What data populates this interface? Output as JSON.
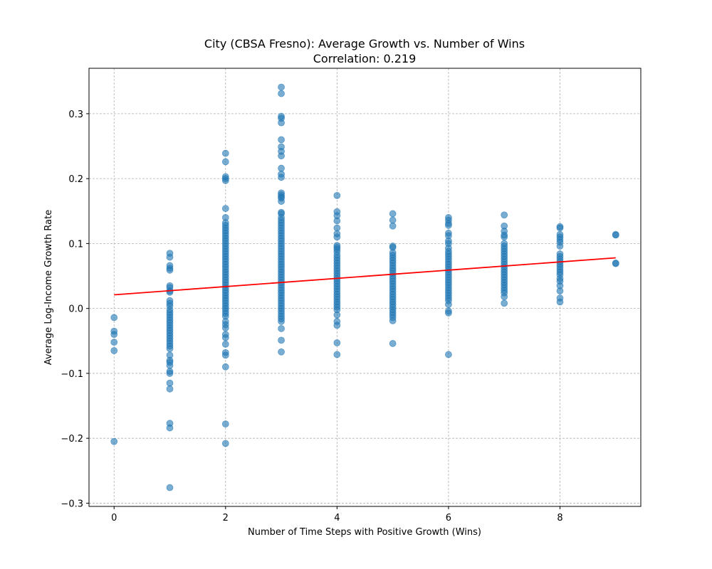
{
  "chart_data": {
    "type": "scatter",
    "title": "City (CBSA Fresno): Average Growth vs. Number of Wins",
    "subtitle": "Correlation: 0.219",
    "xlabel": "Number of Time Steps with Positive Growth (Wins)",
    "ylabel": "Average Log-Income Growth Rate",
    "xlim": [
      -0.45,
      9.45
    ],
    "ylim": [
      -0.305,
      0.37
    ],
    "x_ticks": [
      0,
      2,
      4,
      6,
      8
    ],
    "x_tick_labels": [
      "0",
      "2",
      "4",
      "6",
      "8"
    ],
    "y_ticks": [
      -0.3,
      -0.2,
      -0.1,
      0.0,
      0.1,
      0.2,
      0.3
    ],
    "y_tick_labels": [
      "−0.3",
      "−0.2",
      "−0.1",
      "0.0",
      "0.1",
      "0.2",
      "0.3"
    ],
    "grid": true,
    "point_color": "#1f77b4",
    "point_alpha": 0.6,
    "trend_color": "#ff0000",
    "trend_line": {
      "x": [
        0,
        9
      ],
      "y": [
        0.021,
        0.078
      ]
    },
    "series": [
      {
        "x": 0,
        "y": [
          -0.014,
          -0.035,
          -0.04,
          -0.052,
          -0.065,
          -0.205
        ]
      },
      {
        "x": 1,
        "y": [
          0.085,
          0.079,
          0.066,
          0.062,
          0.059,
          0.035,
          0.032,
          0.027,
          0.025,
          0.012,
          0.008,
          0.004,
          -0.002,
          -0.006,
          -0.01,
          -0.014,
          -0.018,
          -0.022,
          -0.026,
          -0.03,
          -0.034,
          -0.038,
          -0.042,
          -0.046,
          -0.05,
          -0.054,
          -0.058,
          -0.062,
          -0.072,
          -0.08,
          -0.083,
          -0.088,
          -0.097,
          -0.1,
          -0.115,
          -0.124,
          -0.177,
          -0.184,
          -0.276
        ]
      },
      {
        "x": 2,
        "y": [
          0.239,
          0.226,
          0.203,
          0.2,
          0.197,
          0.154,
          0.14,
          0.132,
          0.128,
          0.124,
          0.12,
          0.116,
          0.112,
          0.108,
          0.104,
          0.1,
          0.096,
          0.092,
          0.088,
          0.084,
          0.08,
          0.076,
          0.072,
          0.068,
          0.064,
          0.06,
          0.056,
          0.052,
          0.048,
          0.044,
          0.04,
          0.036,
          0.032,
          0.028,
          0.024,
          0.02,
          0.016,
          0.012,
          0.008,
          0.004,
          0.0,
          -0.004,
          -0.008,
          -0.012,
          -0.02,
          -0.025,
          -0.03,
          -0.04,
          -0.045,
          -0.055,
          -0.068,
          -0.072,
          -0.09,
          -0.178,
          -0.208
        ]
      },
      {
        "x": 3,
        "y": [
          0.341,
          0.331,
          0.296,
          0.293,
          0.286,
          0.26,
          0.249,
          0.242,
          0.235,
          0.216,
          0.207,
          0.202,
          0.178,
          0.175,
          0.172,
          0.17,
          0.165,
          0.148,
          0.146,
          0.14,
          0.136,
          0.132,
          0.128,
          0.124,
          0.12,
          0.116,
          0.112,
          0.108,
          0.104,
          0.1,
          0.096,
          0.092,
          0.088,
          0.084,
          0.08,
          0.076,
          0.072,
          0.068,
          0.064,
          0.06,
          0.056,
          0.052,
          0.048,
          0.044,
          0.04,
          0.036,
          0.032,
          0.028,
          0.024,
          0.02,
          0.016,
          0.012,
          0.008,
          0.004,
          0.0,
          -0.004,
          -0.008,
          -0.012,
          -0.016,
          -0.02,
          -0.031,
          -0.049,
          -0.067
        ]
      },
      {
        "x": 4,
        "y": [
          0.174,
          0.149,
          0.143,
          0.135,
          0.124,
          0.115,
          0.11,
          0.097,
          0.094,
          0.091,
          0.087,
          0.082,
          0.078,
          0.074,
          0.07,
          0.066,
          0.062,
          0.058,
          0.054,
          0.05,
          0.046,
          0.042,
          0.038,
          0.034,
          0.03,
          0.026,
          0.022,
          0.018,
          0.014,
          0.01,
          0.006,
          0.002,
          -0.002,
          -0.01,
          -0.02,
          -0.026,
          -0.053,
          -0.071
        ]
      },
      {
        "x": 5,
        "y": [
          0.146,
          0.136,
          0.127,
          0.096,
          0.094,
          0.086,
          0.082,
          0.078,
          0.074,
          0.07,
          0.066,
          0.062,
          0.058,
          0.054,
          0.05,
          0.046,
          0.042,
          0.038,
          0.034,
          0.03,
          0.026,
          0.022,
          0.018,
          0.014,
          0.01,
          0.006,
          0.002,
          -0.002,
          -0.006,
          -0.01,
          -0.014,
          -0.019,
          -0.054
        ]
      },
      {
        "x": 6,
        "y": [
          0.14,
          0.136,
          0.131,
          0.128,
          0.116,
          0.112,
          0.104,
          0.1,
          0.093,
          0.088,
          0.084,
          0.08,
          0.076,
          0.072,
          0.068,
          0.064,
          0.06,
          0.056,
          0.052,
          0.048,
          0.044,
          0.04,
          0.036,
          0.032,
          0.028,
          0.024,
          0.02,
          0.016,
          0.012,
          0.006,
          -0.004,
          -0.007,
          -0.071
        ]
      },
      {
        "x": 7,
        "y": [
          0.144,
          0.127,
          0.119,
          0.113,
          0.11,
          0.1,
          0.096,
          0.092,
          0.088,
          0.084,
          0.08,
          0.076,
          0.072,
          0.068,
          0.064,
          0.06,
          0.056,
          0.052,
          0.048,
          0.044,
          0.04,
          0.036,
          0.032,
          0.028,
          0.024,
          0.018,
          0.008
        ]
      },
      {
        "x": 8,
        "y": [
          0.126,
          0.124,
          0.114,
          0.11,
          0.106,
          0.102,
          0.096,
          0.084,
          0.08,
          0.076,
          0.072,
          0.068,
          0.064,
          0.06,
          0.056,
          0.052,
          0.046,
          0.042,
          0.035,
          0.027,
          0.016,
          0.01
        ]
      },
      {
        "x": 9,
        "y": [
          0.114,
          0.113,
          0.07,
          0.069
        ]
      }
    ]
  }
}
